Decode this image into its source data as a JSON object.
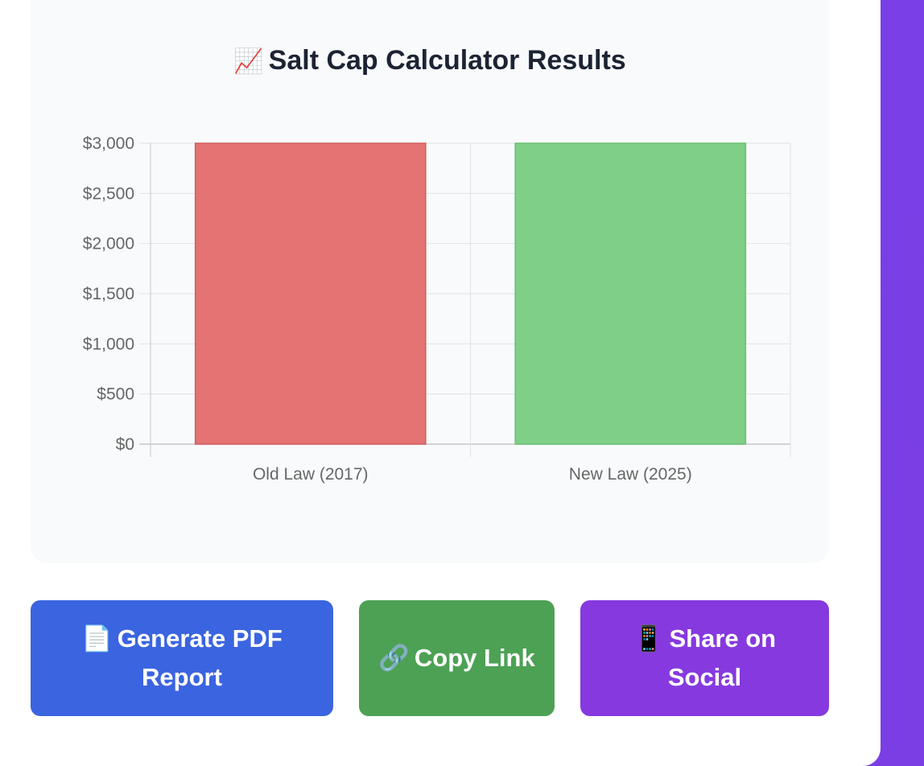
{
  "colors": {
    "page_bg": "#7a3fe6",
    "card_bg": "#ffffff",
    "chart_card_bg": "#f8fafc",
    "bar_old": "#e57373",
    "bar_new": "#7fcf86",
    "btn_pdf": "#3b64e0",
    "btn_copy": "#4da154",
    "btn_share": "#8639df"
  },
  "chart_card": {
    "title_icon": "📈",
    "title": "Salt Cap Calculator Results"
  },
  "chart_data": {
    "type": "bar",
    "categories": [
      "Old Law (2017)",
      "New Law (2025)"
    ],
    "values": [
      3000,
      3000
    ],
    "colors": [
      "#e57373",
      "#7fcf86"
    ],
    "title": "",
    "xlabel": "",
    "ylabel": "",
    "ylim": [
      0,
      3000
    ],
    "yticks": [
      0,
      500,
      1000,
      1500,
      2000,
      2500,
      3000
    ],
    "ytick_labels": [
      "$0",
      "$500",
      "$1,000",
      "$1,500",
      "$2,000",
      "$2,500",
      "$3,000"
    ],
    "grid": true,
    "legend": "none"
  },
  "actions": {
    "pdf": {
      "icon": "📄",
      "label": "Generate PDF Report"
    },
    "copy": {
      "icon": "🔗",
      "label": "Copy Link"
    },
    "share": {
      "icon": "📱",
      "label": "Share on Social"
    }
  }
}
